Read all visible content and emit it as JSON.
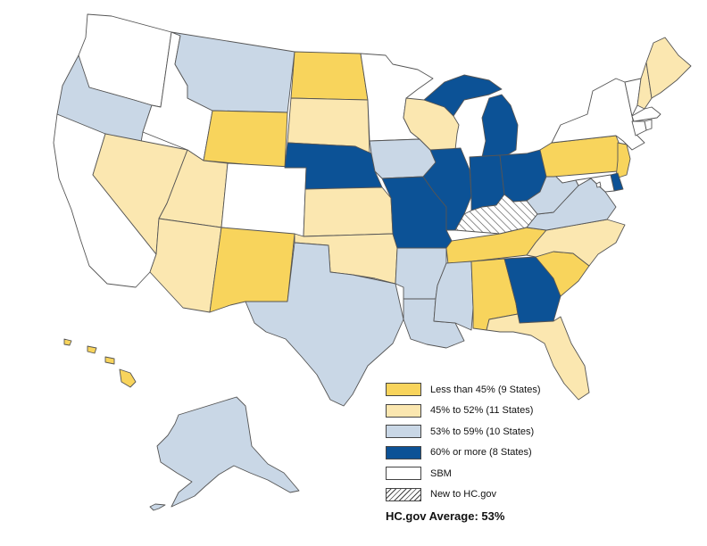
{
  "colors": {
    "less_than_45": "#f8d45c",
    "p45_52": "#fbe7b0",
    "p53_59": "#c9d7e6",
    "p60_more": "#0c5296",
    "sbm": "#ffffff",
    "new": "hatch"
  },
  "legend": [
    {
      "key": "less_than_45",
      "label": "Less than 45% (9 States)"
    },
    {
      "key": "p45_52",
      "label": "45% to 52% (11 States)"
    },
    {
      "key": "p53_59",
      "label": "53% to 59% (10 States)"
    },
    {
      "key": "p60_more",
      "label": "60% or more (8 States)"
    },
    {
      "key": "sbm",
      "label": "SBM"
    },
    {
      "key": "new",
      "label": "New to HC.gov"
    }
  ],
  "average": {
    "label": "HC.gov Average:",
    "value": "53%"
  },
  "state_categories": {
    "WA": "sbm",
    "OR": "p53_59",
    "CA": "sbm",
    "NV": "p45_52",
    "ID": "sbm",
    "MT": "p53_59",
    "WY": "less_than_45",
    "UT": "p45_52",
    "CO": "sbm",
    "AZ": "p45_52",
    "NM": "less_than_45",
    "ND": "less_than_45",
    "SD": "p45_52",
    "NE": "p60_more",
    "KS": "p45_52",
    "OK": "p45_52",
    "TX": "p53_59",
    "MN": "sbm",
    "IA": "p53_59",
    "MO": "p60_more",
    "AR": "p53_59",
    "LA": "p53_59",
    "WI": "p45_52",
    "IL": "p60_more",
    "MI": "p60_more",
    "IN": "p60_more",
    "OH": "p60_more",
    "KY": "new",
    "TN": "less_than_45",
    "MS": "p53_59",
    "AL": "less_than_45",
    "GA": "p60_more",
    "FL": "p45_52",
    "SC": "less_than_45",
    "NC": "p45_52",
    "VA": "p53_59",
    "WV": "p53_59",
    "PA": "less_than_45",
    "NY": "sbm",
    "VT": "sbm",
    "NH": "p45_52",
    "ME": "p45_52",
    "MA": "sbm",
    "RI": "sbm",
    "CT": "sbm",
    "NJ": "less_than_45",
    "DE": "p60_more",
    "MD": "sbm",
    "DC": "sbm",
    "AK": "p53_59",
    "HI": "less_than_45"
  }
}
